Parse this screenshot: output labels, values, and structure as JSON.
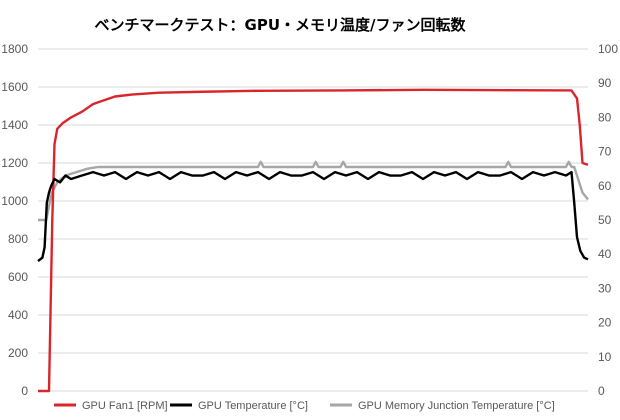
{
  "chart_data": {
    "type": "line",
    "title": "ベンチマークテスト：GPU・メモリ温度/ファン回転数",
    "xlabel": "",
    "ylabel": "",
    "y_left": {
      "min": 0,
      "max": 1800,
      "ticks": [
        "0",
        "200",
        "400",
        "600",
        "800",
        "1000",
        "1200",
        "1400",
        "1600",
        "1800"
      ]
    },
    "y_right": {
      "min": 0,
      "max": 100,
      "ticks": [
        "0",
        "10",
        "20",
        "30",
        "40",
        "50",
        "60",
        "70",
        "80",
        "90",
        "100"
      ]
    },
    "x_range": [
      0,
      100
    ],
    "grid": true,
    "legend_position": "bottom",
    "series": [
      {
        "name": "GPU Fan1 [RPM]",
        "axis": "left",
        "color": "#d9262c",
        "points": [
          [
            0,
            0
          ],
          [
            1.5,
            0
          ],
          [
            2,
            0
          ],
          [
            2.6,
            900
          ],
          [
            3,
            1300
          ],
          [
            3.5,
            1380
          ],
          [
            4.5,
            1410
          ],
          [
            6,
            1440
          ],
          [
            8,
            1470
          ],
          [
            10,
            1510
          ],
          [
            12,
            1530
          ],
          [
            14,
            1550
          ],
          [
            17,
            1560
          ],
          [
            22,
            1570
          ],
          [
            30,
            1575
          ],
          [
            40,
            1580
          ],
          [
            55,
            1582
          ],
          [
            70,
            1585
          ],
          [
            85,
            1583
          ],
          [
            97,
            1582
          ],
          [
            98,
            1540
          ],
          [
            98.5,
            1400
          ],
          [
            99,
            1200
          ],
          [
            100,
            1190
          ]
        ]
      },
      {
        "name": "GPU Temperature [°C]",
        "axis": "right",
        "color": "#000000",
        "points": [
          [
            0,
            38
          ],
          [
            0.8,
            39
          ],
          [
            1.2,
            42
          ],
          [
            1.6,
            55
          ],
          [
            2,
            58
          ],
          [
            2.4,
            60
          ],
          [
            3,
            62
          ],
          [
            4,
            61
          ],
          [
            5,
            63
          ],
          [
            6,
            62
          ],
          [
            8,
            63
          ],
          [
            10,
            64
          ],
          [
            12,
            63
          ],
          [
            14,
            64
          ],
          [
            16,
            62
          ],
          [
            18,
            64
          ],
          [
            20,
            63
          ],
          [
            22,
            64
          ],
          [
            24,
            62
          ],
          [
            26,
            64
          ],
          [
            28,
            63
          ],
          [
            30,
            63
          ],
          [
            32,
            64
          ],
          [
            34,
            62
          ],
          [
            36,
            64
          ],
          [
            38,
            63
          ],
          [
            40,
            64
          ],
          [
            42,
            62
          ],
          [
            44,
            64
          ],
          [
            46,
            63
          ],
          [
            48,
            63
          ],
          [
            50,
            64
          ],
          [
            52,
            62
          ],
          [
            54,
            64
          ],
          [
            56,
            63
          ],
          [
            58,
            64
          ],
          [
            60,
            62
          ],
          [
            62,
            64
          ],
          [
            64,
            63
          ],
          [
            66,
            63
          ],
          [
            68,
            64
          ],
          [
            70,
            62
          ],
          [
            72,
            64
          ],
          [
            74,
            63
          ],
          [
            76,
            64
          ],
          [
            78,
            62
          ],
          [
            80,
            64
          ],
          [
            82,
            63
          ],
          [
            84,
            63
          ],
          [
            86,
            64
          ],
          [
            88,
            62
          ],
          [
            90,
            64
          ],
          [
            92,
            63
          ],
          [
            94,
            64
          ],
          [
            96,
            63
          ],
          [
            97,
            64
          ],
          [
            97.5,
            55
          ],
          [
            98,
            45
          ],
          [
            98.6,
            41
          ],
          [
            99.3,
            39
          ],
          [
            100,
            38.5
          ]
        ]
      },
      {
        "name": "GPU Memory Junction Temperature [°C]",
        "axis": "right",
        "color": "#a6a6a6",
        "points": [
          [
            0,
            50
          ],
          [
            1.5,
            50
          ],
          [
            2.5,
            58
          ],
          [
            3.5,
            61
          ],
          [
            5,
            63
          ],
          [
            7,
            64
          ],
          [
            9,
            65
          ],
          [
            11,
            65.5
          ],
          [
            40,
            65.5
          ],
          [
            40.5,
            67
          ],
          [
            41,
            65.5
          ],
          [
            50,
            65.5
          ],
          [
            50.5,
            67
          ],
          [
            51,
            65.5
          ],
          [
            55,
            65.5
          ],
          [
            55.5,
            67
          ],
          [
            56,
            65.5
          ],
          [
            85,
            65.5
          ],
          [
            85.5,
            67
          ],
          [
            86,
            65.5
          ],
          [
            96,
            65.5
          ],
          [
            96.5,
            67
          ],
          [
            97,
            65.5
          ],
          [
            97.5,
            65.5
          ],
          [
            98.2,
            62
          ],
          [
            99,
            58
          ],
          [
            100,
            56
          ]
        ]
      }
    ]
  }
}
